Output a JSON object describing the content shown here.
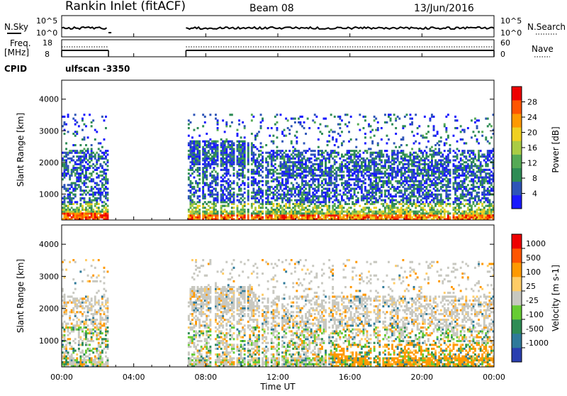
{
  "chart_data": {
    "type": "heatmap",
    "header": {
      "station": "Rankin Inlet (fitACF)",
      "beam": "Beam 08",
      "date": "13/Jun/2016",
      "nsky_label": "N.Sky",
      "nsky_ticks": [
        "10^5",
        "10^0"
      ],
      "nsearch_label": "N.Search",
      "nsearch_ticks": [
        "10^5",
        "10^0"
      ],
      "freq_label_1": "Freq.",
      "freq_label_2": "[MHz]",
      "freq_ticks": [
        "18",
        "8"
      ],
      "nave_label": "Nave",
      "nave_ticks": [
        "60",
        "0"
      ],
      "cpid_label": "CPID",
      "cpid_value": "ulfscan -3350"
    },
    "x_axis": {
      "xlabel": "Time UT",
      "ticks": [
        "00:00",
        "04:00",
        "08:00",
        "12:00",
        "16:00",
        "20:00",
        "00:00"
      ],
      "tick_hours": [
        0,
        4,
        8,
        12,
        16,
        20,
        24
      ],
      "xlim": [
        0,
        24
      ]
    },
    "data_gaps_hours": [
      [
        2.6,
        6.9
      ]
    ],
    "panels": [
      {
        "name": "power",
        "ylabel": "Slant Range [km]",
        "yticks": [
          "1000",
          "2000",
          "3000",
          "4000"
        ],
        "ytick_values": [
          1000,
          2000,
          3000,
          4000
        ],
        "ylim": [
          180,
          4600
        ],
        "colorbar_label": "Power [dB]",
        "colorbar_ticks": [
          "4",
          "8",
          "12",
          "16",
          "20",
          "24",
          "28"
        ],
        "colorbar_tick_values": [
          4,
          8,
          12,
          16,
          20,
          24,
          28
        ],
        "colorbar_range": [
          0,
          32
        ],
        "colorbar_colors": [
          "#1a1aff",
          "#2e55b8",
          "#2e8c55",
          "#55aa55",
          "#aacc44",
          "#f0d020",
          "#ff9900",
          "#ff5500",
          "#ee0000"
        ]
      },
      {
        "name": "velocity",
        "ylabel": "Slant Range [km]",
        "yticks": [
          "1000",
          "2000",
          "3000",
          "4000"
        ],
        "ytick_values": [
          1000,
          2000,
          3000,
          4000
        ],
        "ylim": [
          180,
          4600
        ],
        "colorbar_label": "Velocity [m s-1]",
        "colorbar_ticks": [
          "1000",
          "500",
          "100",
          "25",
          "-25",
          "-100",
          "-500",
          "-1000"
        ],
        "colorbar_colors": [
          "#2a3fb0",
          "#2f7a9a",
          "#2e8c55",
          "#66cc33",
          "#c8c8c0",
          "#ffcc66",
          "#ff9900",
          "#ff5500",
          "#ee0000"
        ]
      }
    ]
  }
}
